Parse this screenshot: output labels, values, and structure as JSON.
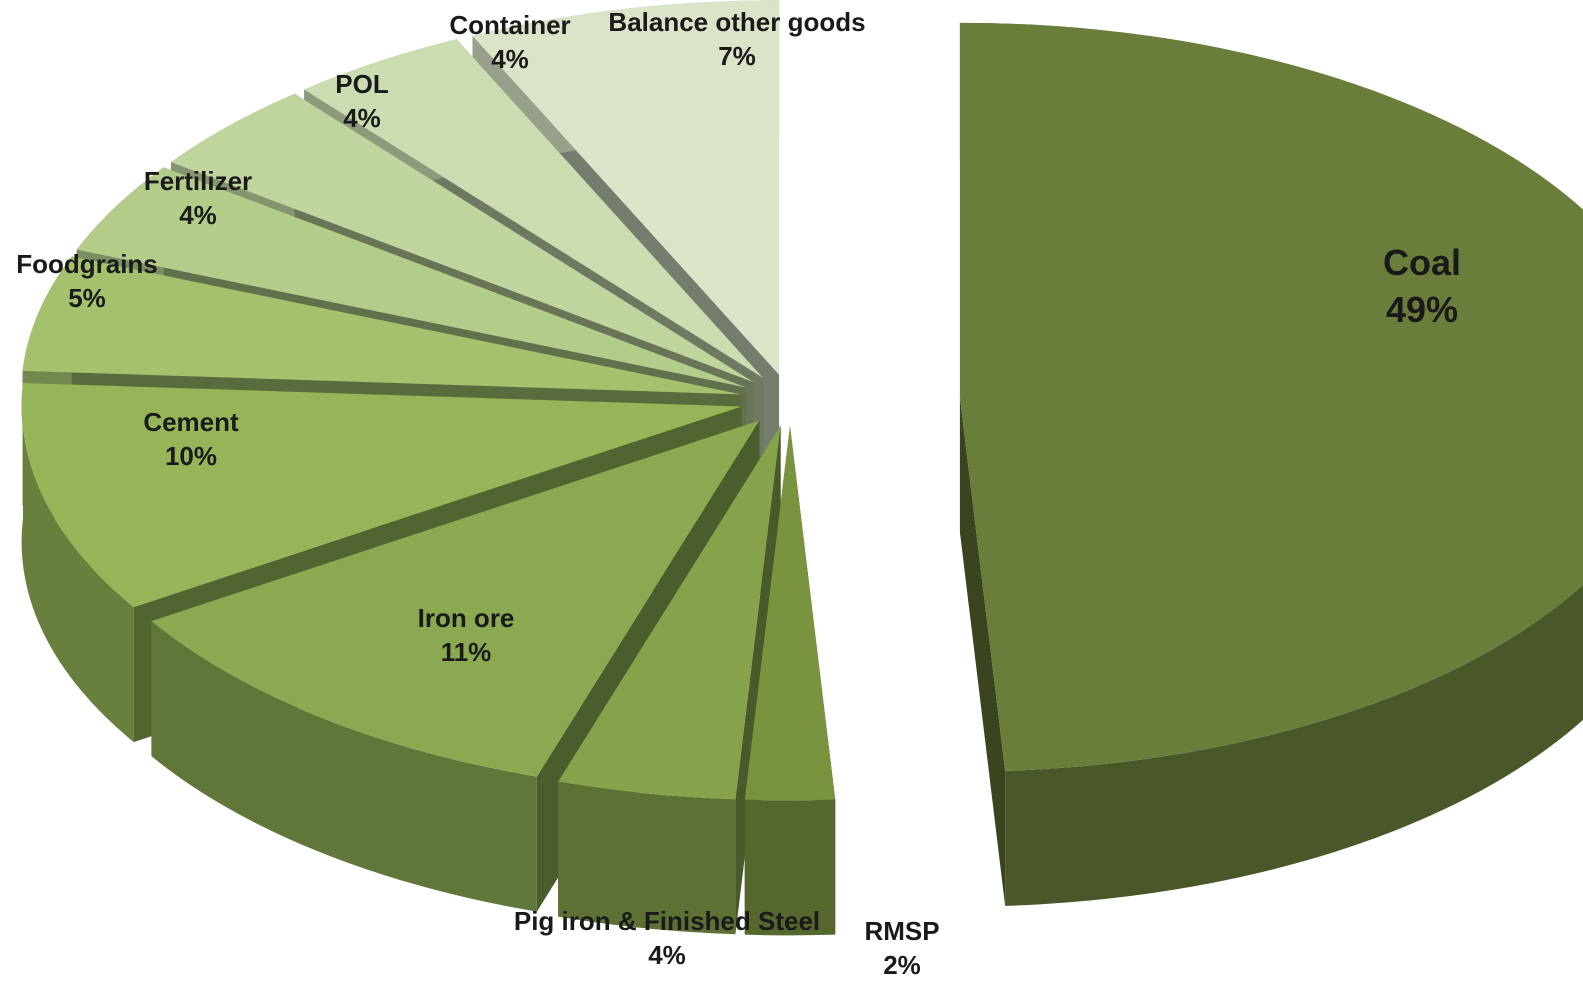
{
  "chart_data": {
    "type": "pie",
    "style": "3d-exploded",
    "series": [
      {
        "label": "Coal",
        "value": 49,
        "value_label": "49%",
        "color": "#6a7d3a"
      },
      {
        "label": "RMSP",
        "value": 2,
        "value_label": "2%",
        "color": "#79933f"
      },
      {
        "label": "Pig iron & Finished Steel",
        "value": 4,
        "value_label": "4%",
        "color": "#86a24a"
      },
      {
        "label": "Iron ore",
        "value": 11,
        "value_label": "11%",
        "color": "#8aa951"
      },
      {
        "label": "Cement",
        "value": 10,
        "value_label": "10%",
        "color": "#95b558"
      },
      {
        "label": "Foodgrains",
        "value": 5,
        "value_label": "5%",
        "color": "#a4c26e"
      },
      {
        "label": "Fertilizer",
        "value": 4,
        "value_label": "4%",
        "color": "#b3cc8a"
      },
      {
        "label": "POL",
        "value": 4,
        "value_label": "4%",
        "color": "#c0d49e"
      },
      {
        "label": "Container",
        "value": 4,
        "value_label": "4%",
        "color": "#cadcb0"
      },
      {
        "label": "Balance other goods",
        "value": 7,
        "value_label": "7%",
        "color": "#d9e4c8"
      }
    ]
  }
}
